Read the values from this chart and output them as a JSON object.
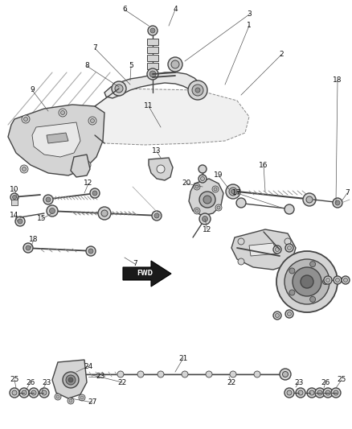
{
  "bg_color": "#ffffff",
  "line_color": "#444444",
  "label_color": "#111111",
  "fig_width": 4.38,
  "fig_height": 5.33,
  "dpi": 100,
  "lw_main": 1.0,
  "lw_thin": 0.6,
  "lw_thick": 1.4,
  "gray_fill": "#d4d4d4",
  "gray_med": "#b8b8b8",
  "gray_light": "#e8e8e8",
  "gray_dark": "#909090"
}
